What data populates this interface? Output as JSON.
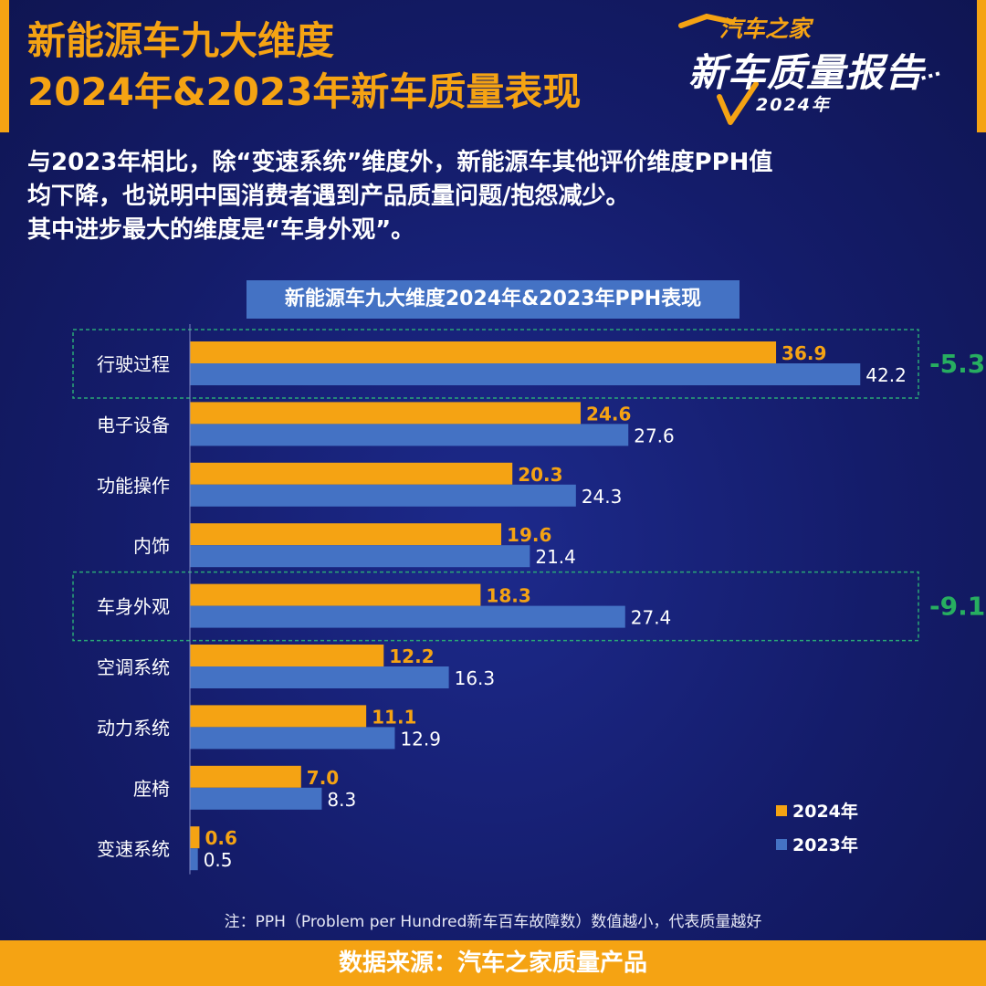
{
  "header": {
    "title_line1": "新能源车九大维度",
    "title_line2": "2024年&2023年新车质量表现"
  },
  "logo": {
    "brand": "汽车之家",
    "main": "新车质量报告",
    "year": "2024年"
  },
  "summary": {
    "line1": "与2023年相比，除“变速系统”维度外，新能源车其他评价维度PPH值",
    "line2": "均下降，也说明中国消费者遇到产品质量问题/抱怨减少。",
    "line3": "其中进步最大的维度是“车身外观”。"
  },
  "chart_data": {
    "type": "bar",
    "orientation": "horizontal",
    "title": "新能源车九大维度2024年&2023年PPH表现",
    "categories": [
      "行驶过程",
      "电子设备",
      "功能操作",
      "内饰",
      "车身外观",
      "空调系统",
      "动力系统",
      "座椅",
      "变速系统"
    ],
    "series": [
      {
        "name": "2024年",
        "color": "#f5a313",
        "values": [
          36.9,
          24.6,
          20.3,
          19.6,
          18.3,
          12.2,
          11.1,
          7.0,
          0.6
        ],
        "labels": [
          "36.9",
          "24.6",
          "20.3",
          "19.6",
          "18.3",
          "12.2",
          "11.1",
          "7.0",
          "0.6"
        ]
      },
      {
        "name": "2023年",
        "color": "#4472c4",
        "values": [
          42.2,
          27.6,
          24.3,
          21.4,
          27.4,
          16.3,
          12.9,
          8.3,
          0.5
        ],
        "labels": [
          "42.2",
          "27.6",
          "24.3",
          "21.4",
          "27.4",
          "16.3",
          "12.9",
          "8.3",
          "0.5"
        ]
      }
    ],
    "annotations": [
      {
        "category": "行驶过程",
        "text": "-5.3",
        "color": "#27ae60"
      },
      {
        "category": "车身外观",
        "text": "-9.1",
        "color": "#27ae60"
      }
    ],
    "legend_position": "bottom-right",
    "grid": false
  },
  "footer": {
    "note": "注：PPH（Problem per Hundred新车百车故障数）数值越小，代表质量越好",
    "source": "数据来源：汽车之家质量产品"
  }
}
